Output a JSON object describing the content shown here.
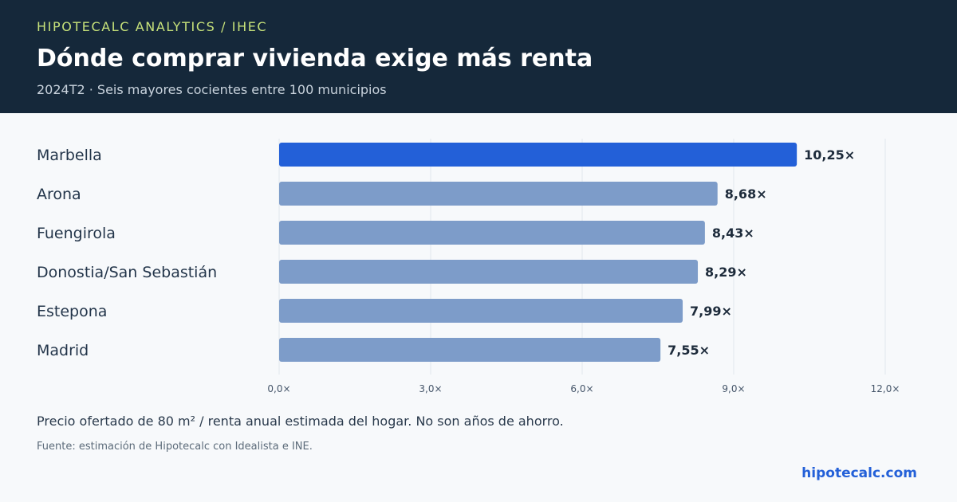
{
  "header": {
    "kicker": "HIPOTECALC ANALYTICS / IHEC",
    "title": "Dónde comprar vivienda exige más renta",
    "subtitle": "2024T2 · Seis mayores cocientes entre 100 municipios"
  },
  "chart_data": {
    "type": "bar",
    "orientation": "horizontal",
    "categories": [
      "Marbella",
      "Arona",
      "Fuengirola",
      "Donostia/San Sebastián",
      "Estepona",
      "Madrid"
    ],
    "values": [
      10.25,
      8.68,
      8.43,
      8.29,
      7.99,
      7.55
    ],
    "value_labels": [
      "10,25×",
      "8,68×",
      "8,43×",
      "8,29×",
      "7,99×",
      "7,55×"
    ],
    "xlim": [
      0,
      12
    ],
    "x_ticks": [
      0,
      3,
      6,
      9,
      12
    ],
    "x_tick_labels": [
      "0,0×",
      "3,0×",
      "6,0×",
      "9,0×",
      "12,0×"
    ],
    "grid": "vertical",
    "highlight_index": 0,
    "colors": {
      "highlight": "#2360d8",
      "bar": "#7d9cc9",
      "grid": "#e2e7ed",
      "label": "#23354a",
      "value": "#1d2b3b",
      "tick": "#46566a"
    }
  },
  "footer": {
    "note": "Precio ofertado de 80 m² / renta anual estimada del hogar. No son años de ahorro.",
    "source": "Fuente: estimación de Hipotecalc con Idealista e INE.",
    "brand": "hipotecalc.com"
  }
}
